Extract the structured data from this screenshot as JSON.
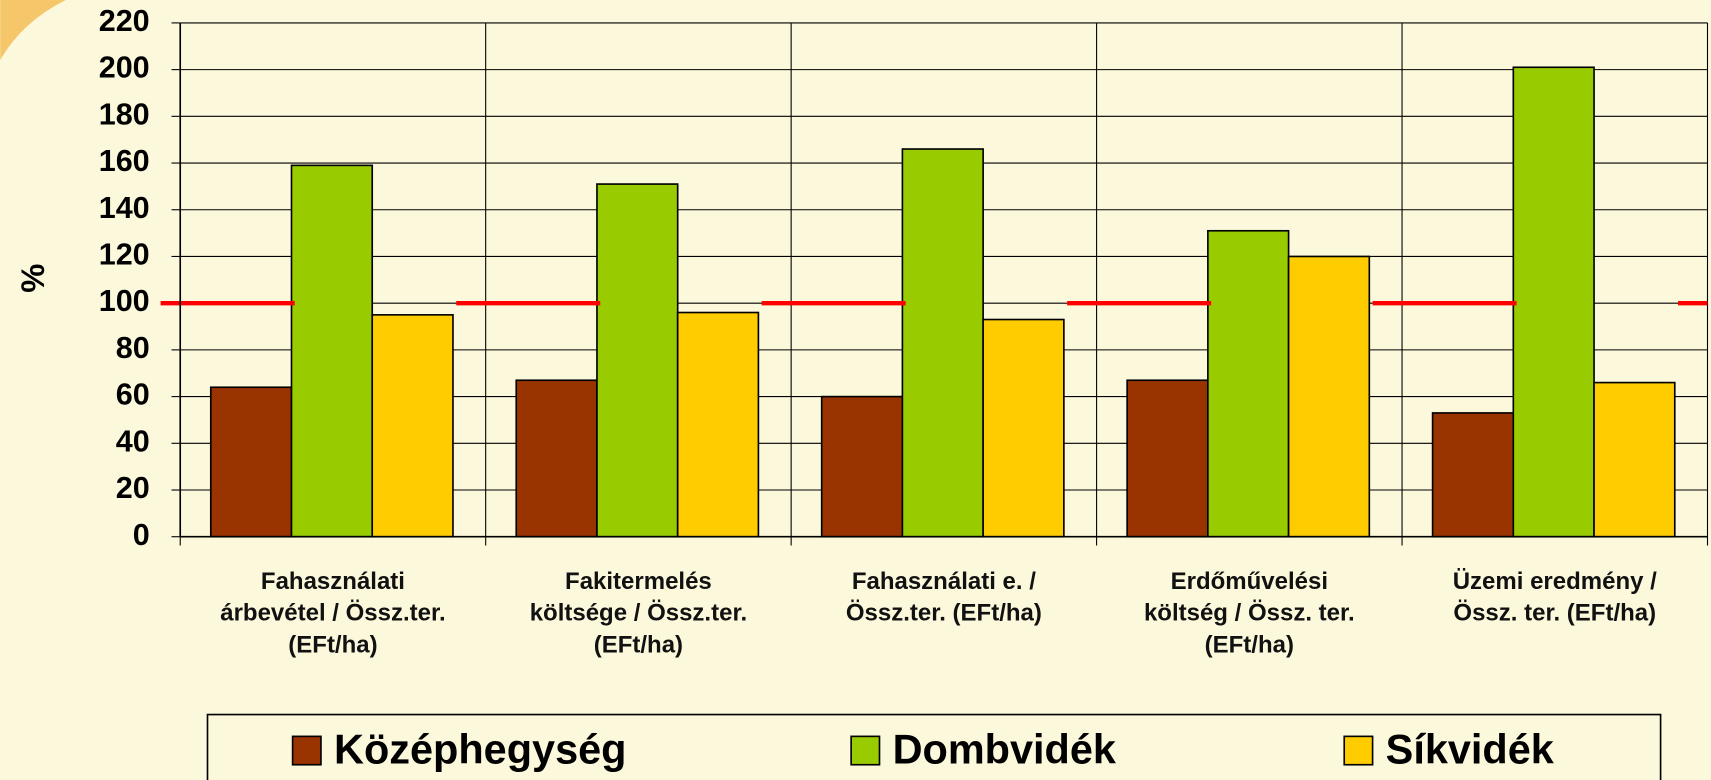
{
  "chart_data": {
    "type": "bar",
    "y_label": "%",
    "categories": [
      "Fahasználati\nárbevétel / Össz.ter.\n(EFt/ha)",
      "Fakitermelés\nköltsége / Össz.ter.\n(EFt/ha)",
      "Fahasználati e. /\nÖssz.ter. (EFt/ha)",
      "Erdőművelési\nköltség / Össz. ter.\n(EFt/ha)",
      "Üzemi eredmény /\nÖssz. ter. (EFt/ha)"
    ],
    "series": [
      {
        "name": "Középhegység",
        "color": "#993300",
        "values": [
          64,
          67,
          60,
          67,
          53
        ]
      },
      {
        "name": "Dombvidék",
        "color": "#99cc00",
        "values": [
          159,
          151,
          166,
          131,
          201
        ]
      },
      {
        "name": "Síkvidék",
        "color": "#ffcc00",
        "values": [
          95,
          96,
          93,
          120,
          66
        ]
      }
    ],
    "reference_line": {
      "value": 100,
      "color": "#ff0000"
    },
    "ylim": [
      0,
      220
    ],
    "yticks": [
      0,
      20,
      40,
      60,
      80,
      100,
      120,
      140,
      160,
      180,
      200,
      220
    ],
    "grid": true,
    "legend": "bottom"
  }
}
